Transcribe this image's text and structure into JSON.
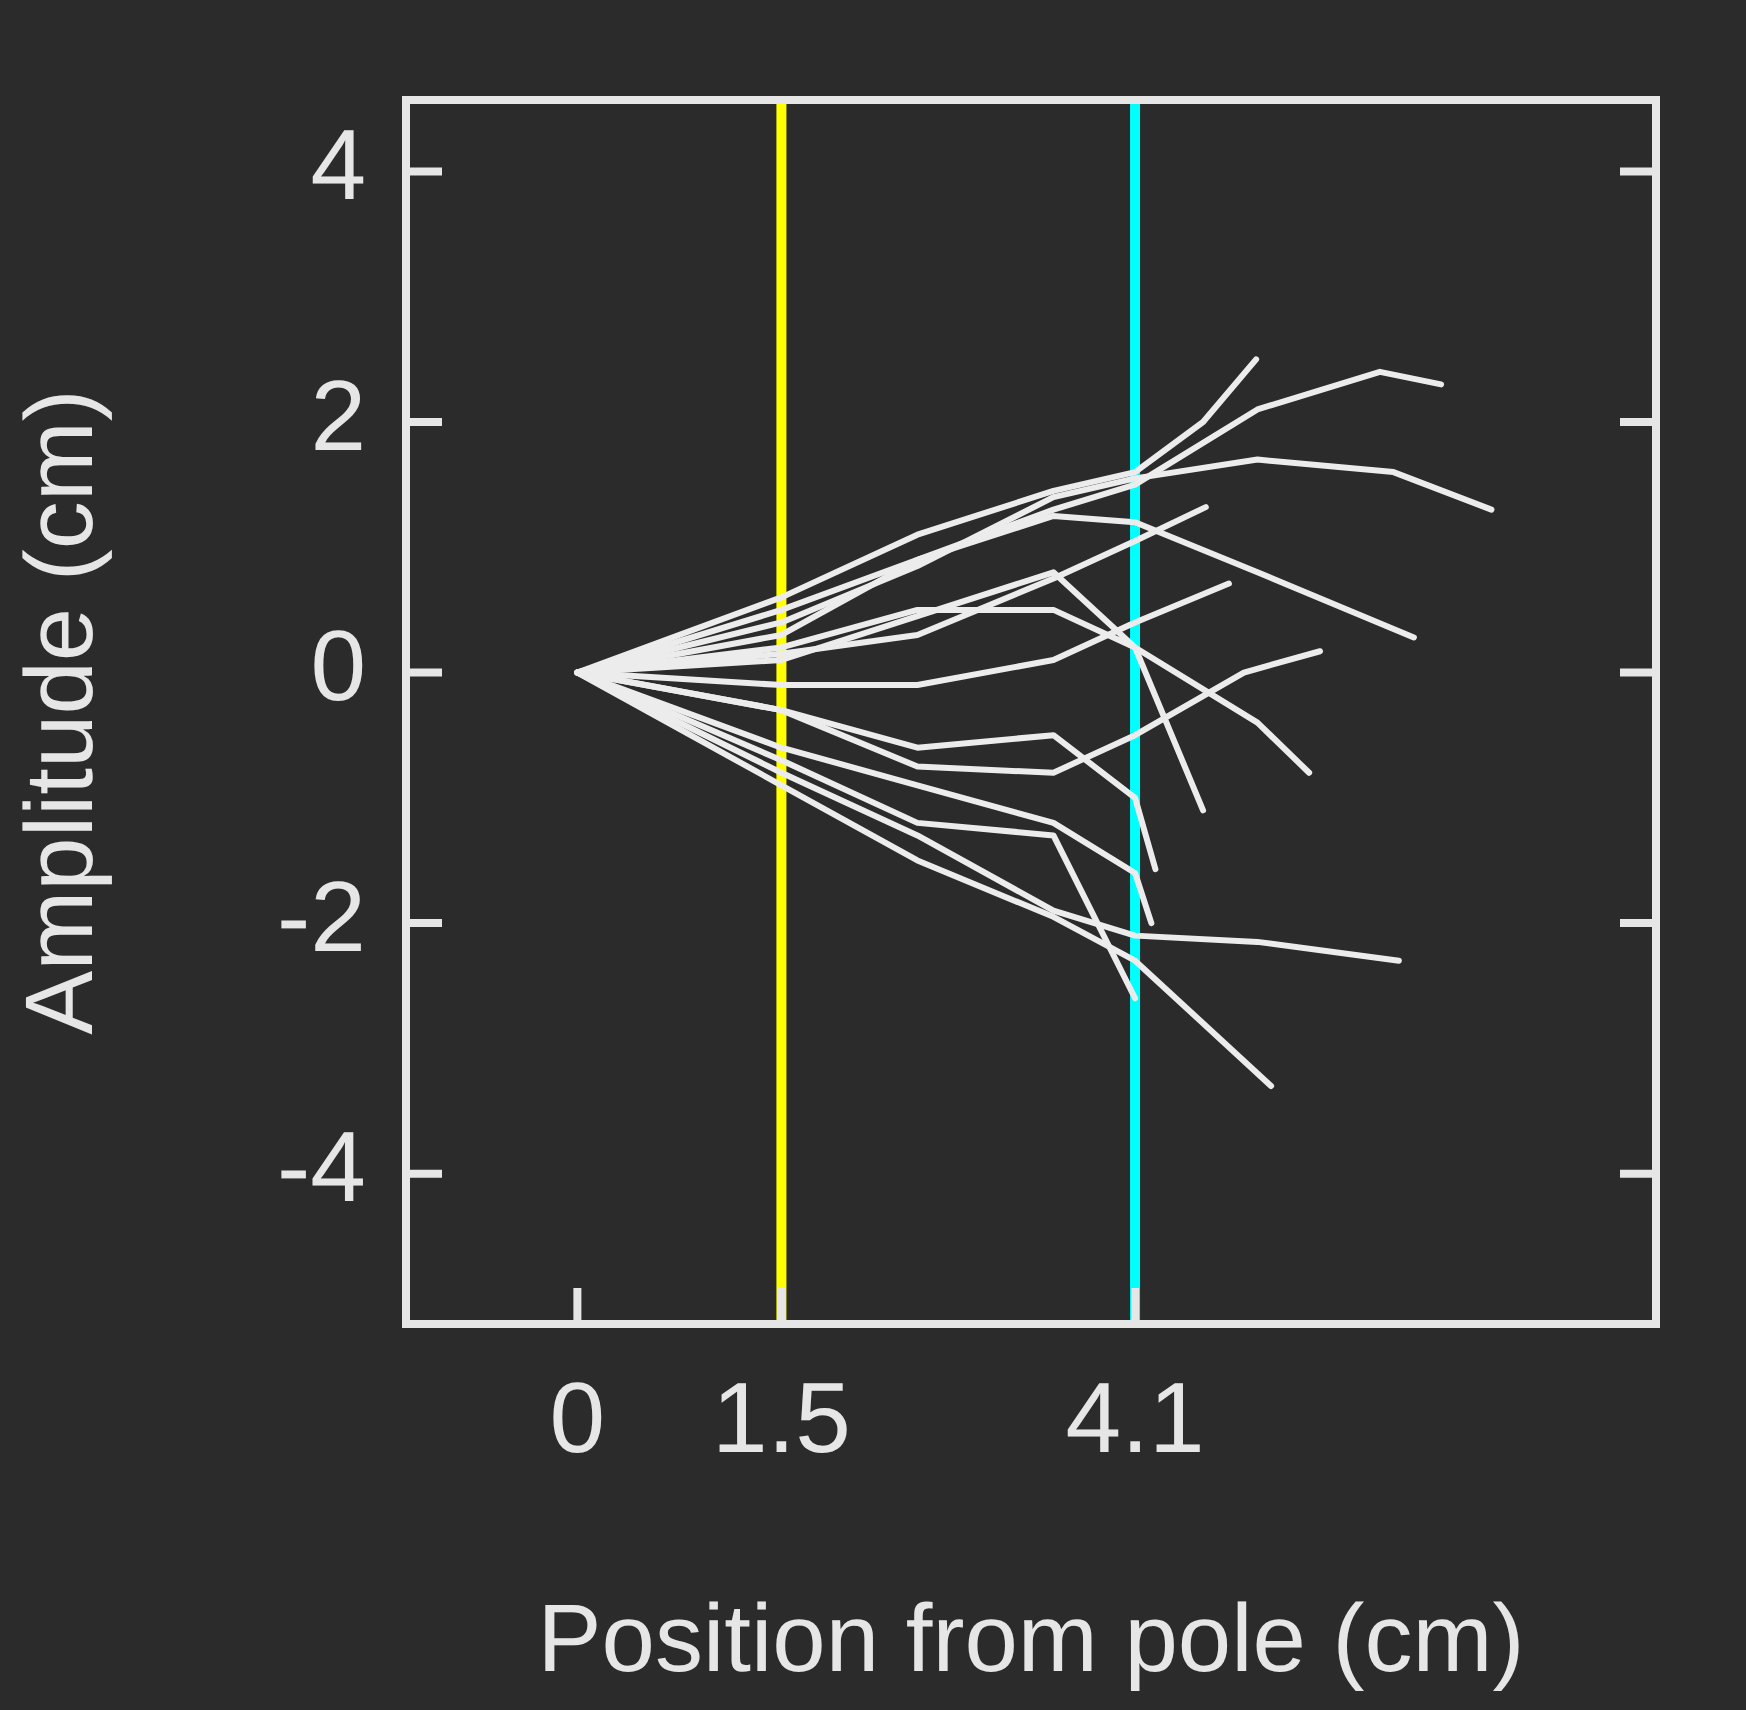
{
  "chart_data": {
    "type": "line",
    "xlabel": "Position from pole (cm)",
    "ylabel": "Amplitude (cm)",
    "xlim": [
      -1.26,
      7.93
    ],
    "xticks": [
      0,
      1.5,
      4.1
    ],
    "ylim": [
      -5.2,
      4.57
    ],
    "yticks": [
      -4,
      -2,
      0,
      2,
      4
    ],
    "grid": false,
    "legend": false,
    "ref_lines": [
      {
        "axis": "x",
        "value": 1.5,
        "color": "#ffff00"
      },
      {
        "axis": "x",
        "value": 4.1,
        "color": "#00ffff"
      }
    ],
    "series": [
      {
        "color": "#ececec",
        "x": [
          0,
          1.5,
          2.5,
          3.5,
          4.1,
          4.6,
          4.99
        ],
        "values": [
          0,
          0.6,
          1.1,
          1.45,
          1.6,
          2.0,
          2.5
        ]
      },
      {
        "color": "#ececec",
        "x": [
          0,
          1.5,
          2.5,
          3.5,
          4.1,
          5.0,
          5.9,
          6.35
        ],
        "values": [
          0,
          0.5,
          0.9,
          1.3,
          1.5,
          2.1,
          2.4,
          2.3
        ]
      },
      {
        "color": "#ececec",
        "x": [
          0,
          1.5,
          2.5,
          3.5,
          4.1,
          5.0,
          6.0,
          6.72
        ],
        "values": [
          0,
          0.4,
          0.85,
          1.4,
          1.55,
          1.7,
          1.6,
          1.3
        ]
      },
      {
        "color": "#ececec",
        "x": [
          0,
          1.5,
          2.5,
          3.5,
          4.1,
          5.0,
          6.15
        ],
        "values": [
          0,
          0.3,
          0.9,
          1.25,
          1.2,
          0.8,
          0.28
        ]
      },
      {
        "color": "#ececec",
        "x": [
          0,
          1.5,
          2.5,
          3.5,
          4.1,
          4.62
        ],
        "values": [
          0,
          0.15,
          0.3,
          0.75,
          1.05,
          1.32
        ]
      },
      {
        "color": "#ececec",
        "x": [
          0,
          1.5,
          2.5,
          3.5,
          4.1,
          4.79
        ],
        "values": [
          0,
          -0.1,
          -0.1,
          0.1,
          0.4,
          0.71
        ]
      },
      {
        "color": "#ececec",
        "x": [
          0,
          1.5,
          2.5,
          3.5,
          4.1,
          4.9,
          5.46
        ],
        "values": [
          0,
          -0.3,
          -0.75,
          -0.8,
          -0.5,
          0,
          0.17
        ]
      },
      {
        "color": "#ececec",
        "x": [
          0,
          1.5,
          2.5,
          3.5,
          4.1,
          5.0,
          5.38
        ],
        "values": [
          0,
          0.2,
          0.5,
          0.5,
          0.2,
          -0.4,
          -0.8
        ]
      },
      {
        "color": "#ececec",
        "x": [
          0,
          1.5,
          2.5,
          3.5,
          4.1,
          4.6
        ],
        "values": [
          0,
          0.1,
          0.45,
          0.8,
          0.2,
          -1.1
        ]
      },
      {
        "color": "#ececec",
        "x": [
          0,
          1.5,
          2.5,
          3.5,
          4.1,
          4.25
        ],
        "values": [
          0,
          -0.3,
          -0.6,
          -0.5,
          -1.0,
          -1.57
        ]
      },
      {
        "color": "#ececec",
        "x": [
          0,
          1.5,
          2.5,
          3.5,
          4.1,
          4.22
        ],
        "values": [
          0,
          -0.6,
          -0.9,
          -1.2,
          -1.6,
          -2.0
        ]
      },
      {
        "color": "#ececec",
        "x": [
          0,
          1.5,
          2.5,
          3.5,
          4.1,
          5.0,
          6.04
        ],
        "values": [
          0,
          -0.8,
          -1.3,
          -1.9,
          -2.1,
          -2.15,
          -2.3
        ]
      },
      {
        "color": "#ececec",
        "x": [
          0,
          1.5,
          2.5,
          3.5,
          4.1,
          5.1
        ],
        "values": [
          0,
          -0.9,
          -1.5,
          -1.95,
          -2.3,
          -3.3
        ]
      },
      {
        "color": "#ececec",
        "x": [
          0,
          1.5,
          2.5,
          3.5,
          4.1
        ],
        "values": [
          0,
          -0.7,
          -1.2,
          -1.3,
          -2.6
        ]
      }
    ]
  }
}
